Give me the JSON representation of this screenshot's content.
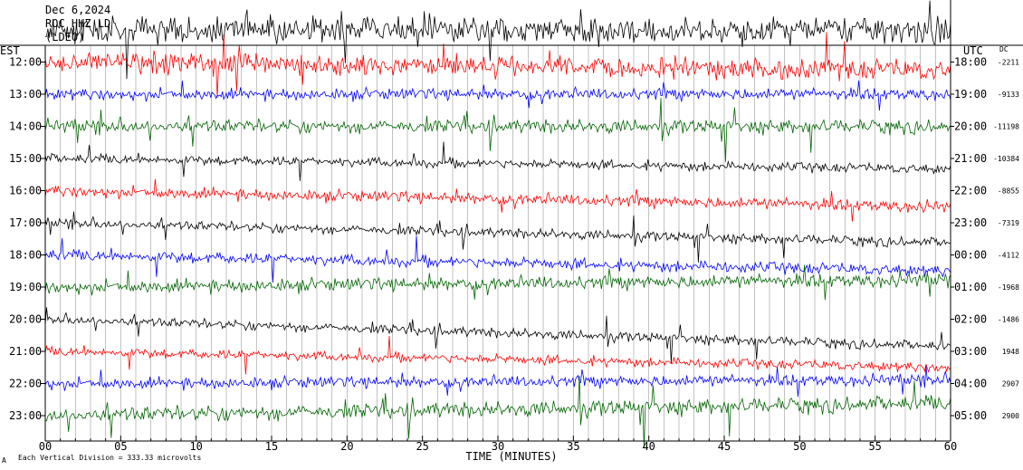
{
  "header": {
    "date": "Dec 6,2024",
    "station": "ROC HHZ LD",
    "network": "(LDEO)"
  },
  "chart_data": {
    "type": "line",
    "title": "",
    "xlabel": "TIME (MINUTES)",
    "x_ticks": [
      "00",
      "05",
      "10",
      "15",
      "20",
      "25",
      "30",
      "35",
      "40",
      "45",
      "50",
      "55",
      "60"
    ],
    "xlim": [
      0,
      60
    ],
    "left_axis_title": "EST",
    "right_axis_title": "UTC",
    "dc_title": "DC",
    "scale_note": "Each Vertical Division = 333.33 microvolts",
    "corner_mark": "A",
    "traces": [
      {
        "est": "",
        "utc": "",
        "dc": "",
        "color": "#000000"
      },
      {
        "est": "12:00",
        "utc": "18:00",
        "dc": "-2211",
        "color": "#ff0000"
      },
      {
        "est": "13:00",
        "utc": "19:00",
        "dc": "-9133",
        "color": "#0000ff"
      },
      {
        "est": "14:00",
        "utc": "20:00",
        "dc": "-11198",
        "color": "#006400"
      },
      {
        "est": "15:00",
        "utc": "21:00",
        "dc": "-10384",
        "color": "#000000"
      },
      {
        "est": "16:00",
        "utc": "22:00",
        "dc": "-8855",
        "color": "#ff0000"
      },
      {
        "est": "17:00",
        "utc": "23:00",
        "dc": "-7319",
        "color": "#000000"
      },
      {
        "est": "18:00",
        "utc": "00:00",
        "dc": "-4112",
        "color": "#0000ff"
      },
      {
        "est": "19:00",
        "utc": "01:00",
        "dc": "-1968",
        "color": "#006400"
      },
      {
        "est": "20:00",
        "utc": "02:00",
        "dc": "-1486",
        "color": "#000000"
      },
      {
        "est": "21:00",
        "utc": "03:00",
        "dc": "1948",
        "color": "#ff0000"
      },
      {
        "est": "22:00",
        "utc": "04:00",
        "dc": "2907",
        "color": "#0000ff"
      },
      {
        "est": "23:00",
        "utc": "05:00",
        "dc": "2900",
        "color": "#006400"
      }
    ]
  }
}
